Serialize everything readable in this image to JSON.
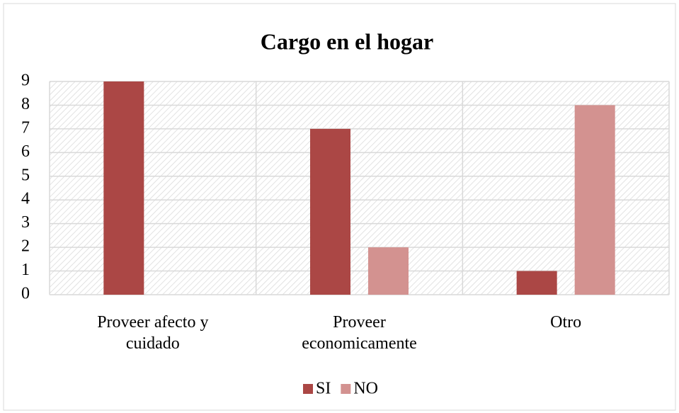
{
  "chart_data": {
    "type": "bar",
    "title": "Cargo en el hogar",
    "categories": [
      "Proveer afecto y cuidado",
      "Proveer economicamente",
      "Otro"
    ],
    "series": [
      {
        "name": "SI",
        "color": "#ab4745",
        "values": [
          9,
          7,
          1
        ]
      },
      {
        "name": "NO",
        "color": "#d39290",
        "values": [
          0,
          2,
          8
        ]
      }
    ],
    "ylim": [
      0,
      9
    ],
    "yticks": [
      0,
      1,
      2,
      3,
      4,
      5,
      6,
      7,
      8,
      9
    ],
    "grid": true,
    "legend": "bottom"
  }
}
